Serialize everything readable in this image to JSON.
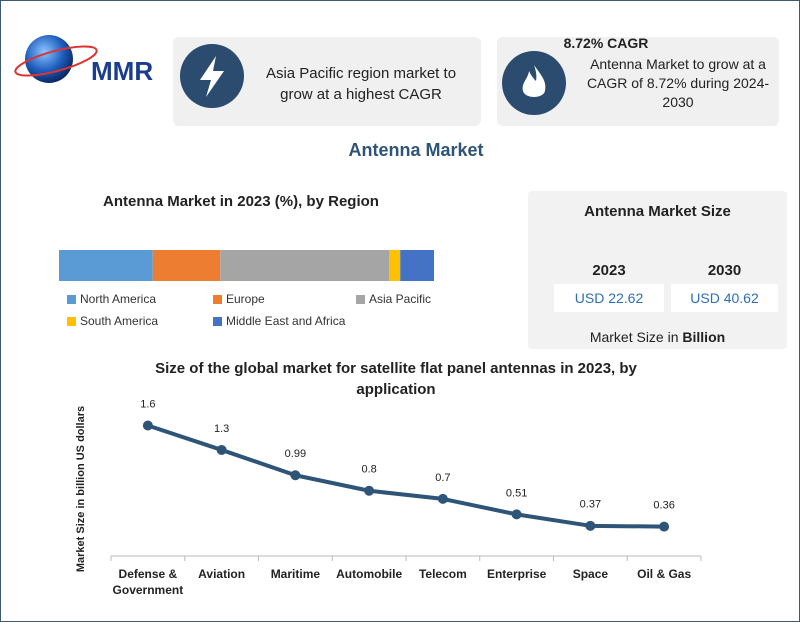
{
  "header": {
    "logo": "MMR",
    "highlight_1": "Asia Pacific region market to grow at a highest CAGR",
    "highlight_2_title": "8.72% CAGR",
    "highlight_2": "Antenna Market to grow at a CAGR of 8.72% during 2024-2030",
    "title": "Antenna Market"
  },
  "market_size": {
    "title": "Antenna Market Size",
    "years": [
      "2023",
      "2030"
    ],
    "values": [
      "USD 22.62",
      "USD 40.62"
    ],
    "footer": "Market Size in",
    "footer_unit": "Billion"
  },
  "chart_data": [
    {
      "type": "stacked_bar",
      "title": "Antenna Market in 2023 (%), by Region",
      "xlim": [
        0,
        100
      ],
      "series": [
        {
          "name": "North America",
          "color": "#5b9bd5",
          "values": [
            25
          ]
        },
        {
          "name": "Europe",
          "color": "#ed7d31",
          "values": [
            18
          ]
        },
        {
          "name": "Asia Pacific",
          "color": "#a5a5a5",
          "values": [
            45
          ]
        },
        {
          "name": "South America",
          "color": "#ffc000",
          "values": [
            3
          ]
        },
        {
          "name": "Middle East and Africa",
          "color": "#4472c4",
          "values": [
            9
          ]
        }
      ]
    },
    {
      "type": "line",
      "title": "Size of the global market for satellite flat panel antennas in 2023, by application",
      "y_label": "Market Size in billion US dollars",
      "categories": [
        "Defense & Government",
        "Aviation",
        "Maritime",
        "Automobile",
        "Telecom",
        "Enterprise",
        "Space",
        "Oil & Gas"
      ],
      "values": [
        1.6,
        1.3,
        0.99,
        0.8,
        0.7,
        0.51,
        0.37,
        0.36
      ],
      "color": "#2e5577",
      "ylim": [
        0,
        1.9
      ]
    }
  ]
}
